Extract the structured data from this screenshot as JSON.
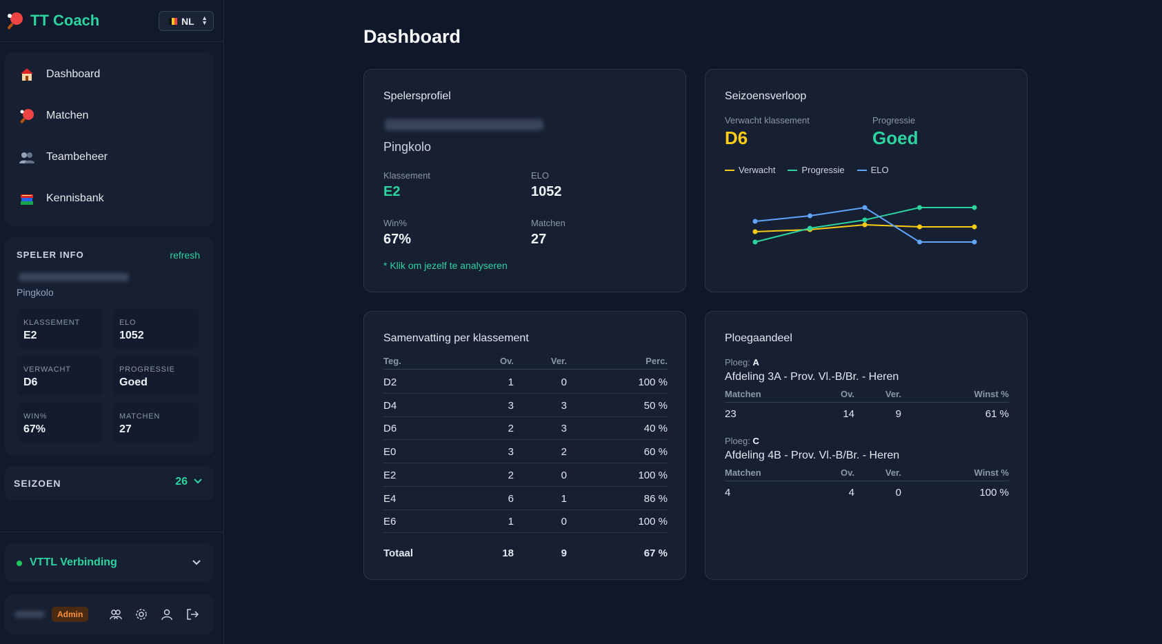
{
  "app": {
    "name": "TT Coach",
    "language": "NL"
  },
  "nav": [
    {
      "label": "Dashboard",
      "icon": "house-icon"
    },
    {
      "label": "Matchen",
      "icon": "ping-pong-icon"
    },
    {
      "label": "Teambeheer",
      "icon": "people-icon"
    },
    {
      "label": "Kennisbank",
      "icon": "books-icon"
    }
  ],
  "player_info": {
    "heading": "SPELER INFO",
    "refresh": "refresh",
    "club": "Pingkolo",
    "stats": [
      {
        "label": "KLASSEMENT",
        "value": "E2"
      },
      {
        "label": "ELO",
        "value": "1052"
      },
      {
        "label": "VERWACHT",
        "value": "D6"
      },
      {
        "label": "PROGRESSIE",
        "value": "Goed"
      },
      {
        "label": "WIN%",
        "value": "67%"
      },
      {
        "label": "MATCHEN",
        "value": "27"
      }
    ]
  },
  "season": {
    "label": "SEIZOEN",
    "value": "26"
  },
  "connection": {
    "label": "VTTL Verbinding"
  },
  "user": {
    "role": "Admin"
  },
  "page": {
    "title": "Dashboard"
  },
  "profile": {
    "title": "Spelersprofiel",
    "club": "Pingkolo",
    "klassement_label": "Klassement",
    "klassement": "E2",
    "elo_label": "ELO",
    "elo": "1052",
    "win_label": "Win%",
    "win": "67%",
    "matchen_label": "Matchen",
    "matchen": "27",
    "hint": "* Klik om jezelf te analyseren"
  },
  "season_progress": {
    "title": "Seizoensverloop",
    "expected_label": "Verwacht klassement",
    "expected": "D6",
    "progress_label": "Progressie",
    "progress": "Goed"
  },
  "chart_data": {
    "type": "line",
    "x": [
      1,
      2,
      3,
      4,
      5
    ],
    "series": [
      {
        "name": "Verwacht",
        "color": "#facc15",
        "values": [
          0.45,
          0.48,
          0.55,
          0.52,
          0.52
        ]
      },
      {
        "name": "Progressie",
        "color": "#2dd4a0",
        "values": [
          0.3,
          0.5,
          0.62,
          0.8,
          0.8
        ]
      },
      {
        "name": "ELO",
        "color": "#60a5fa",
        "values": [
          0.6,
          0.68,
          0.8,
          0.3,
          0.3
        ]
      }
    ],
    "ylim": [
      0,
      1
    ],
    "grid": false,
    "legend": "top-left"
  },
  "summary": {
    "title": "Samenvatting per klassement",
    "headers": [
      "Teg.",
      "Ov.",
      "Ver.",
      "Perc."
    ],
    "rows": [
      [
        "D2",
        "1",
        "0",
        "100 %"
      ],
      [
        "D4",
        "3",
        "3",
        "50 %"
      ],
      [
        "D6",
        "2",
        "3",
        "40 %"
      ],
      [
        "E0",
        "3",
        "2",
        "60 %"
      ],
      [
        "E2",
        "2",
        "0",
        "100 %"
      ],
      [
        "E4",
        "6",
        "1",
        "86 %"
      ],
      [
        "E6",
        "1",
        "0",
        "100 %"
      ]
    ],
    "total": [
      "Totaal",
      "18",
      "9",
      "67 %"
    ]
  },
  "teams": {
    "title": "Ploegaandeel",
    "ploeg_label": "Ploeg:",
    "headers": [
      "Matchen",
      "Ov.",
      "Ver.",
      "Winst %"
    ],
    "items": [
      {
        "team": "A",
        "division": "Afdeling 3A - Prov. Vl.-B/Br. - Heren",
        "row": [
          "23",
          "14",
          "9",
          "61 %"
        ]
      },
      {
        "team": "C",
        "division": "Afdeling 4B - Prov. Vl.-B/Br. - Heren",
        "row": [
          "4",
          "4",
          "0",
          "100 %"
        ]
      }
    ]
  }
}
